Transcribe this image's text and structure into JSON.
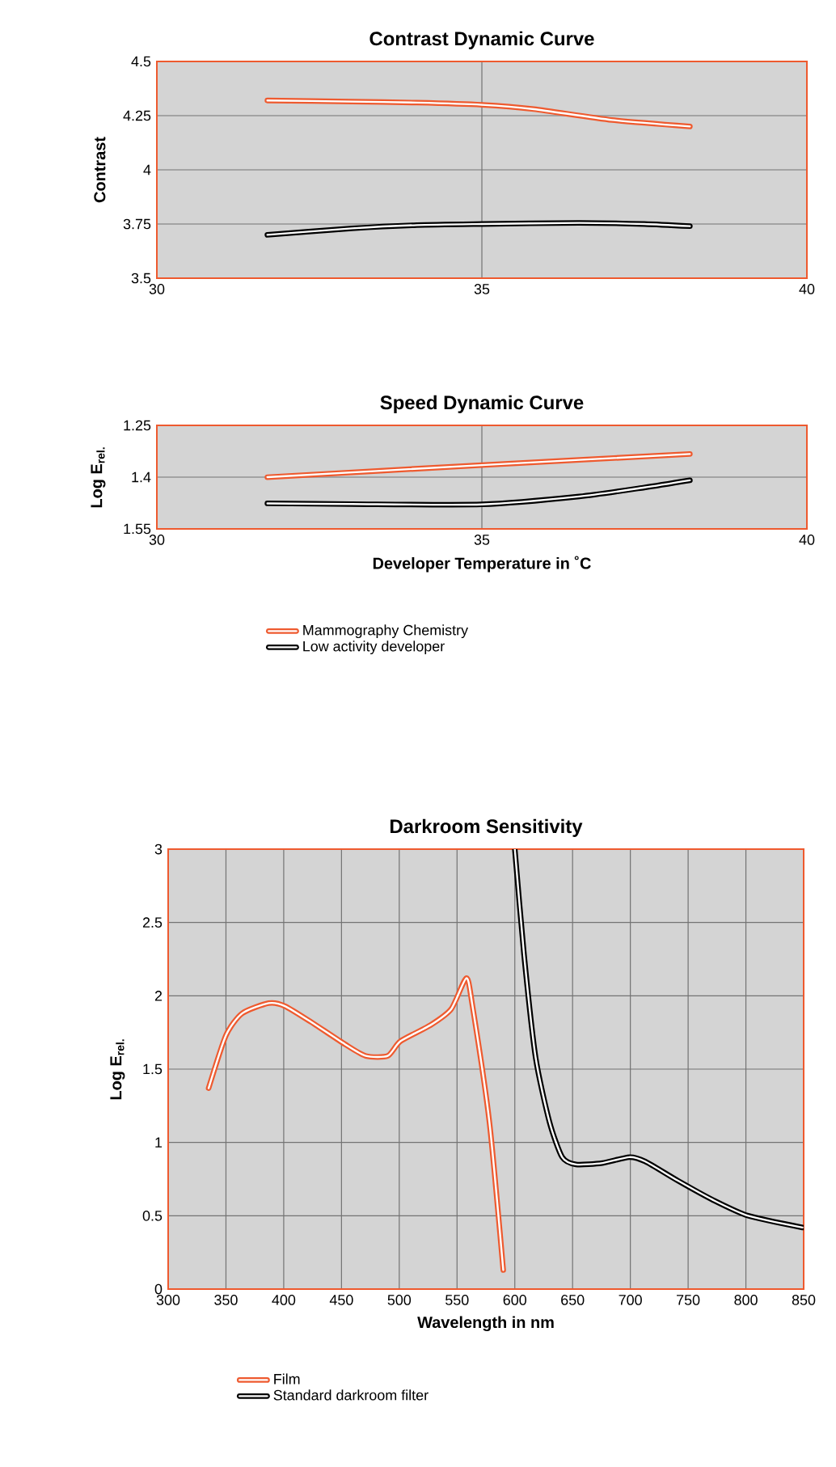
{
  "chart_data": [
    {
      "type": "line",
      "title": "Contrast Dynamic Curve",
      "ylabel": "Contrast",
      "xlim": [
        30,
        40
      ],
      "xticks": [
        30,
        35,
        40
      ],
      "ylim": [
        3.5,
        4.5
      ],
      "yticks": [
        3.5,
        3.75,
        4,
        4.25,
        4.5
      ],
      "grid": true,
      "series": [
        {
          "color": "#ee5a2f",
          "x": [
            31.7,
            33,
            34,
            35,
            35.8,
            37,
            38.2
          ],
          "values": [
            4.32,
            4.315,
            4.31,
            4.3,
            4.28,
            4.23,
            4.2
          ]
        },
        {
          "color": "#000000",
          "x": [
            31.7,
            33,
            34,
            35,
            36.5,
            37.5,
            38.2
          ],
          "values": [
            3.7,
            3.73,
            3.745,
            3.75,
            3.755,
            3.75,
            3.74
          ]
        }
      ]
    },
    {
      "type": "line",
      "title": "Speed Dynamic Curve",
      "ylabel": "Log E$_{rel.}$",
      "xlabel": "Developer Temperature in ˚C",
      "xlim": [
        30,
        40
      ],
      "xticks": [
        30,
        35,
        40
      ],
      "ylim": [
        1.55,
        1.25
      ],
      "yticks": [
        1.25,
        1.4,
        1.55
      ],
      "grid": true,
      "legend": "bottom",
      "series": [
        {
          "name": "Mammography Chemistry",
          "color": "#ee5a2f",
          "x": [
            31.7,
            35,
            38.2
          ],
          "values": [
            1.4,
            1.365,
            1.333
          ]
        },
        {
          "name": "Low activity developer",
          "color": "#000000",
          "x": [
            31.7,
            33,
            35,
            36.5,
            37.5,
            38.2
          ],
          "values": [
            1.476,
            1.478,
            1.479,
            1.456,
            1.43,
            1.409
          ]
        }
      ]
    },
    {
      "type": "line",
      "title": "Darkroom Sensitivity",
      "ylabel": "Log E$_{rel.}$",
      "xlabel": "Wavelength in nm",
      "xlim": [
        300,
        850
      ],
      "xticks": [
        300,
        350,
        400,
        450,
        500,
        550,
        600,
        650,
        700,
        750,
        800,
        850
      ],
      "ylim": [
        0,
        3
      ],
      "yticks": [
        0,
        0.5,
        1,
        1.5,
        2,
        2.5,
        3
      ],
      "grid": true,
      "legend": "bottom",
      "series": [
        {
          "name": "Film",
          "color": "#ee5a2f",
          "x": [
            335,
            350,
            364,
            387,
            401,
            424,
            453,
            471,
            490,
            501,
            527,
            545,
            558,
            563,
            578,
            590
          ],
          "values": [
            1.37,
            1.73,
            1.88,
            1.95,
            1.93,
            1.82,
            1.67,
            1.59,
            1.59,
            1.69,
            1.8,
            1.91,
            2.12,
            1.95,
            1.14,
            0.13
          ]
        },
        {
          "name": "Standard darkroom filter",
          "color": "#000000",
          "x": [
            600,
            608,
            618,
            630,
            641,
            653,
            676,
            699,
            713,
            741,
            771,
            802,
            849
          ],
          "values": [
            3.0,
            2.28,
            1.58,
            1.14,
            0.9,
            0.85,
            0.86,
            0.9,
            0.87,
            0.74,
            0.61,
            0.5,
            0.42
          ]
        }
      ]
    }
  ]
}
